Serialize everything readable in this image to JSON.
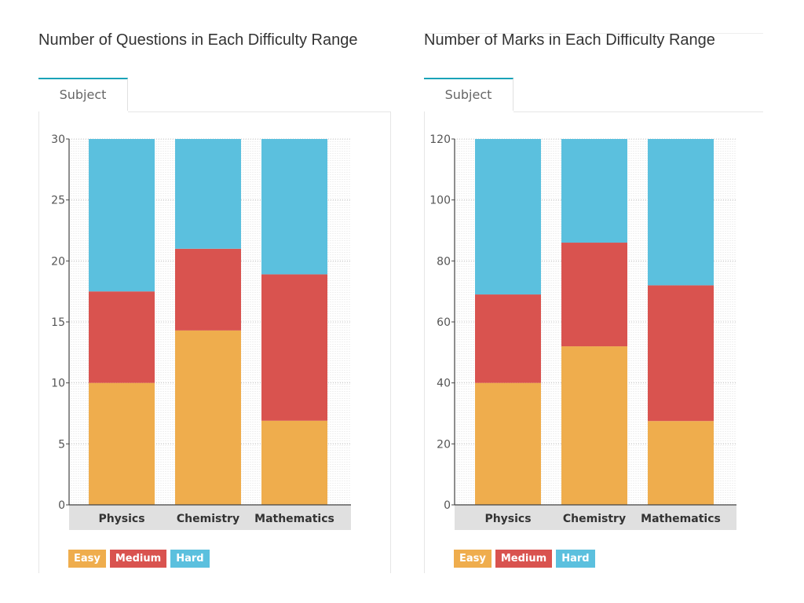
{
  "colors": {
    "easy": "#efad4d",
    "medium": "#d9534f",
    "hard": "#5bc0de",
    "axis": "#444444",
    "grid": "#cccccc",
    "category_band": "#e0e0e0"
  },
  "legend": [
    {
      "label": "Easy",
      "color": "#efad4d"
    },
    {
      "label": "Medium",
      "color": "#d9534f"
    },
    {
      "label": "Hard",
      "color": "#5bc0de"
    }
  ],
  "panels": [
    {
      "title": "Number of Questions in Each Difficulty Range",
      "tab": "Subject"
    },
    {
      "title": "Number of Marks in Each Difficulty Range",
      "tab": "Subject"
    }
  ],
  "chart_data": [
    {
      "type": "bar",
      "stacked": true,
      "title": "Number of Questions in Each Difficulty Range",
      "categories": [
        "Physics",
        "Chemistry",
        "Mathematics"
      ],
      "series": [
        {
          "name": "Easy",
          "values": [
            10,
            14.3,
            6.9
          ]
        },
        {
          "name": "Medium",
          "values": [
            7.5,
            6.7,
            12
          ]
        },
        {
          "name": "Hard",
          "values": [
            12.5,
            9,
            11.1
          ]
        }
      ],
      "ylim": [
        0,
        30
      ],
      "yticks": [
        0,
        5,
        10,
        15,
        20,
        25,
        30
      ],
      "legend_position": "bottom-left",
      "grid": true
    },
    {
      "type": "bar",
      "stacked": true,
      "title": "Number of Marks in Each Difficulty Range",
      "categories": [
        "Physics",
        "Chemistry",
        "Mathematics"
      ],
      "series": [
        {
          "name": "Easy",
          "values": [
            40,
            52,
            27.5
          ]
        },
        {
          "name": "Medium",
          "values": [
            29,
            34,
            44.5
          ]
        },
        {
          "name": "Hard",
          "values": [
            51,
            34,
            48
          ]
        }
      ],
      "ylim": [
        0,
        120
      ],
      "yticks": [
        0,
        20,
        40,
        60,
        80,
        100,
        120
      ],
      "legend_position": "bottom-left",
      "grid": true
    }
  ]
}
